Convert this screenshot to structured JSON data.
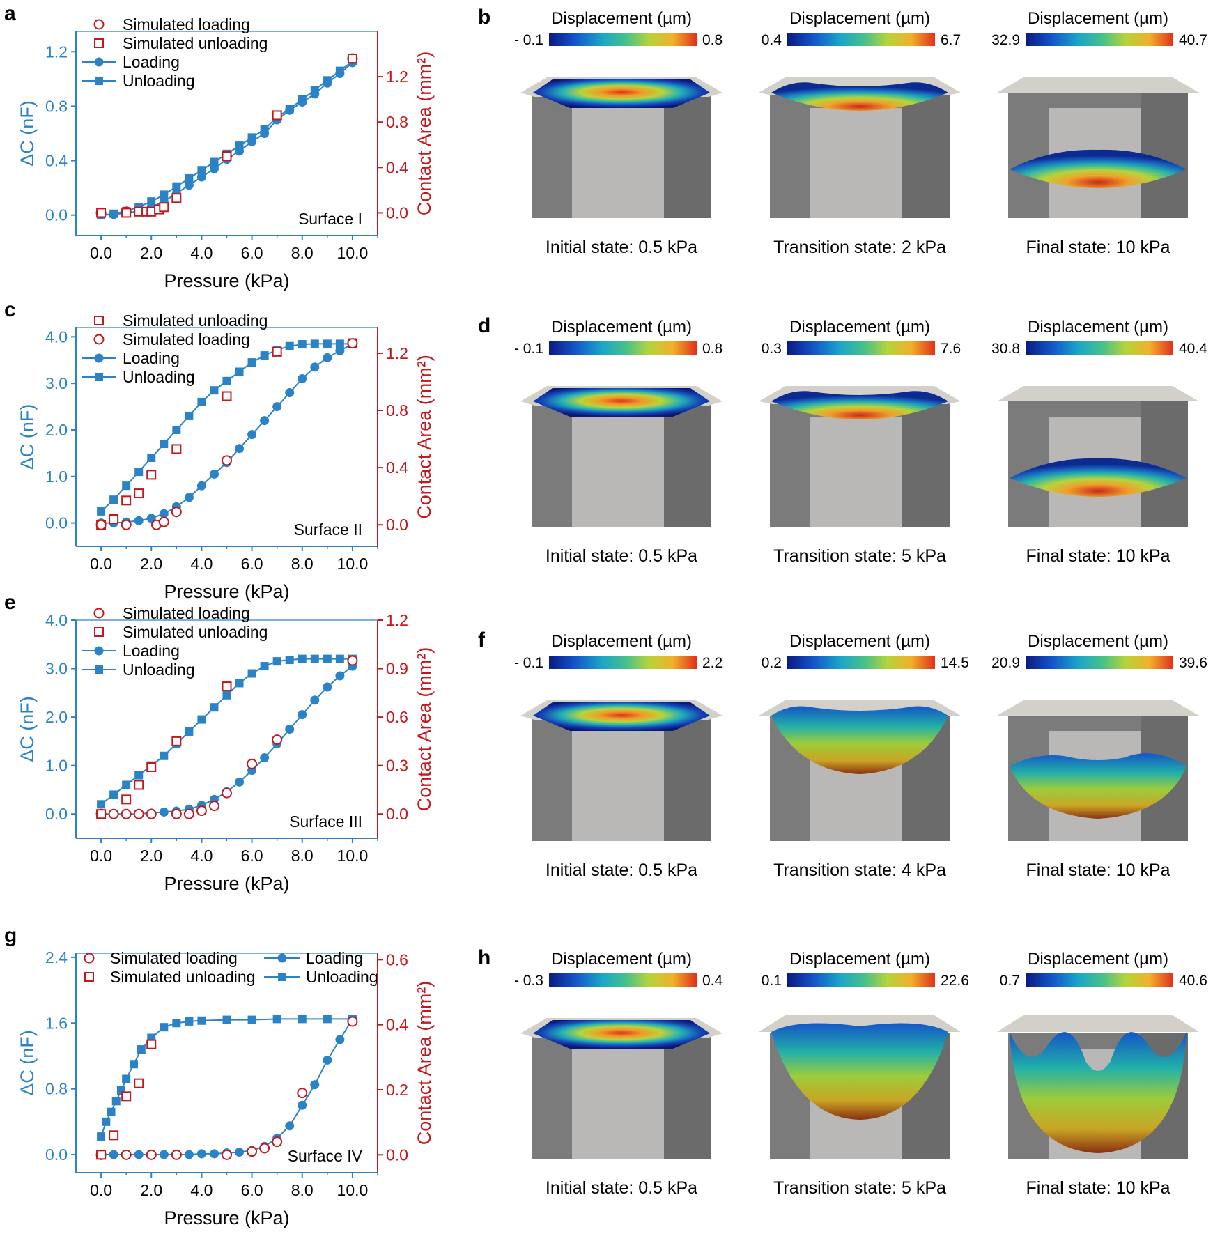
{
  "colors": {
    "blue": "#2b83c6",
    "red": "#c4181c",
    "black": "#000000",
    "side": "#7b7b7b",
    "inner": "#b9b8b6",
    "roof": "#d3d0c9"
  },
  "panels": [
    {
      "letter": "a",
      "surface": "Surface I",
      "xlabel": "Pressure (kPa)",
      "ylabel_left": "ΔC (nF)",
      "ylabel_right": "Contact Area (mm²)",
      "xticks": [
        "0.0",
        "2.0",
        "4.0",
        "6.0",
        "8.0",
        "10.0"
      ],
      "yticks_left": [
        "0.0",
        "0.4",
        "0.8",
        "1.2"
      ],
      "yticks_right": [
        "0.0",
        "0.4",
        "0.8",
        "1.2"
      ],
      "legend": [
        "Simulated loading",
        "Simulated unloading",
        "Loading",
        "Unloading"
      ]
    },
    {
      "letter": "c",
      "surface": "Surface II",
      "xlabel": "Pressure (kPa)",
      "ylabel_left": "ΔC (nF)",
      "ylabel_right": "Contact Area (mm²)",
      "xticks": [
        "0.0",
        "2.0",
        "4.0",
        "6.0",
        "8.0",
        "10.0"
      ],
      "yticks_left": [
        "0.0",
        "1.0",
        "2.0",
        "3.0",
        "4.0"
      ],
      "yticks_right": [
        "0.0",
        "0.4",
        "0.8",
        "1.2"
      ],
      "legend": [
        "Simulated unloading",
        "Simulated loading",
        "Loading",
        "Unloading"
      ]
    },
    {
      "letter": "e",
      "surface": "Surface III",
      "xlabel": "Pressure (kPa)",
      "ylabel_left": "ΔC (nF)",
      "ylabel_right": "Contact Area (mm²)",
      "xticks": [
        "0.0",
        "2.0",
        "4.0",
        "6.0",
        "8.0",
        "10.0"
      ],
      "yticks_left": [
        "0.0",
        "1.0",
        "2.0",
        "3.0",
        "4.0"
      ],
      "yticks_right": [
        "0.0",
        "0.3",
        "0.6",
        "0.9",
        "1.2"
      ],
      "legend": [
        "Simulated loading",
        "Simulated unloading",
        "Loading",
        "Unloading"
      ]
    },
    {
      "letter": "g",
      "surface": "Surface IV",
      "xlabel": "Pressure (kPa)",
      "ylabel_left": "ΔC (nF)",
      "ylabel_right": "Contact Area (mm²)",
      "xticks": [
        "0.0",
        "2.0",
        "4.0",
        "6.0",
        "8.0",
        "10.0"
      ],
      "yticks_left": [
        "0.0",
        "0.8",
        "1.6",
        "2.4"
      ],
      "yticks_right": [
        "0.0",
        "0.2",
        "0.4",
        "0.6"
      ],
      "legend": [
        "Simulated loading",
        "Simulated unloading",
        "Loading",
        "Unloading"
      ]
    }
  ],
  "chart_data": [
    {
      "type": "line",
      "title": "a — Surface I",
      "xlabel": "Pressure (kPa)",
      "ylabel": "ΔC (nF)",
      "y2label": "Contact Area (mm²)",
      "xlim": [
        -1.0,
        11.0
      ],
      "ylim": [
        -0.15,
        1.35
      ],
      "y2lim": [
        -0.2,
        1.6
      ],
      "series": [
        {
          "name": "Loading",
          "axis": "left",
          "marker": "circle-filled",
          "x": [
            0,
            0.5,
            1.0,
            1.5,
            2.0,
            2.5,
            3.0,
            3.5,
            4.0,
            4.5,
            5.0,
            5.5,
            6.0,
            6.5,
            7.0,
            7.5,
            8.0,
            8.5,
            9.0,
            9.5,
            10.0
          ],
          "y": [
            0.0,
            0.005,
            0.015,
            0.03,
            0.06,
            0.1,
            0.16,
            0.22,
            0.28,
            0.34,
            0.41,
            0.47,
            0.54,
            0.6,
            0.7,
            0.77,
            0.83,
            0.89,
            0.97,
            1.04,
            1.12
          ]
        },
        {
          "name": "Unloading",
          "axis": "left",
          "marker": "square-filled",
          "x": [
            0,
            0.5,
            1.0,
            1.5,
            2.0,
            2.5,
            3.0,
            3.5,
            4.0,
            4.5,
            5.0,
            5.5,
            6.0,
            6.5,
            7.0,
            7.5,
            8.0,
            8.5,
            9.0,
            9.5,
            10.0
          ],
          "y": [
            0.0,
            0.01,
            0.03,
            0.06,
            0.1,
            0.15,
            0.21,
            0.27,
            0.33,
            0.39,
            0.45,
            0.51,
            0.57,
            0.63,
            0.72,
            0.78,
            0.85,
            0.92,
            0.99,
            1.06,
            1.13
          ]
        },
        {
          "name": "Simulated loading",
          "axis": "right",
          "marker": "circle-open",
          "x": [
            0,
            1.0,
            5.0,
            10.0
          ],
          "y": [
            0.0,
            0.01,
            0.5,
            1.36
          ]
        },
        {
          "name": "Simulated unloading",
          "axis": "right",
          "marker": "square-open",
          "x": [
            0,
            1.0,
            1.5,
            1.8,
            2.0,
            2.3,
            2.5,
            3.0,
            5.0,
            7.0,
            10.0
          ],
          "y": [
            0.0,
            0.0,
            0.01,
            0.01,
            0.01,
            0.03,
            0.05,
            0.13,
            0.5,
            0.86,
            1.36
          ]
        }
      ]
    },
    {
      "type": "line",
      "title": "c — Surface II",
      "xlabel": "Pressure (kPa)",
      "ylabel": "ΔC (nF)",
      "y2label": "Contact Area (mm²)",
      "xlim": [
        -1.0,
        11.0
      ],
      "ylim": [
        -0.5,
        4.2
      ],
      "y2lim": [
        -0.15,
        1.38
      ],
      "series": [
        {
          "name": "Loading",
          "axis": "left",
          "marker": "circle-filled",
          "x": [
            0,
            0.5,
            1.0,
            1.5,
            2.0,
            2.5,
            3.0,
            3.5,
            4.0,
            4.5,
            5.0,
            5.5,
            6.0,
            6.5,
            7.0,
            7.5,
            8.0,
            8.5,
            9.0,
            9.5,
            10.0
          ],
          "y": [
            0.0,
            0.0,
            0.02,
            0.05,
            0.1,
            0.2,
            0.35,
            0.55,
            0.8,
            1.05,
            1.3,
            1.6,
            1.9,
            2.2,
            2.5,
            2.8,
            3.1,
            3.35,
            3.55,
            3.7,
            3.85
          ]
        },
        {
          "name": "Unloading",
          "axis": "left",
          "marker": "square-filled",
          "x": [
            0,
            0.5,
            1.0,
            1.5,
            2.0,
            2.5,
            3.0,
            3.5,
            4.0,
            4.5,
            5.0,
            5.5,
            6.0,
            6.5,
            7.0,
            7.5,
            8.0,
            8.5,
            9.0,
            9.5,
            10.0
          ],
          "y": [
            0.25,
            0.5,
            0.8,
            1.1,
            1.4,
            1.7,
            2.0,
            2.3,
            2.6,
            2.85,
            3.05,
            3.25,
            3.45,
            3.6,
            3.72,
            3.8,
            3.84,
            3.85,
            3.85,
            3.85,
            3.85
          ]
        },
        {
          "name": "Simulated unloading",
          "axis": "right",
          "marker": "square-open",
          "x": [
            0,
            0.5,
            1.0,
            1.5,
            2.0,
            3.0,
            5.0,
            7.0,
            10.0
          ],
          "y": [
            0.0,
            0.04,
            0.17,
            0.22,
            0.35,
            0.53,
            0.9,
            1.21,
            1.27
          ]
        },
        {
          "name": "Simulated loading",
          "axis": "right",
          "marker": "circle-open",
          "x": [
            0,
            1.0,
            2.2,
            2.5,
            3.0,
            5.0,
            10.0
          ],
          "y": [
            0.0,
            0.0,
            0.0,
            0.02,
            0.09,
            0.45,
            1.27
          ]
        }
      ]
    },
    {
      "type": "line",
      "title": "e — Surface III",
      "xlabel": "Pressure (kPa)",
      "ylabel": "ΔC (nF)",
      "y2label": "Contact Area (mm²)",
      "xlim": [
        -1.0,
        11.0
      ],
      "ylim": [
        -0.5,
        4.0
      ],
      "y2lim": [
        -0.15,
        1.2
      ],
      "series": [
        {
          "name": "Loading",
          "axis": "left",
          "marker": "circle-filled",
          "x": [
            0,
            0.5,
            1.0,
            1.5,
            2.0,
            2.5,
            3.0,
            3.5,
            4.0,
            4.5,
            5.0,
            5.5,
            6.0,
            6.5,
            7.0,
            7.5,
            8.0,
            8.5,
            9.0,
            9.5,
            10.0
          ],
          "y": [
            0.0,
            0.0,
            0.0,
            0.0,
            0.02,
            0.04,
            0.06,
            0.1,
            0.18,
            0.3,
            0.46,
            0.66,
            0.9,
            1.16,
            1.45,
            1.75,
            2.05,
            2.35,
            2.62,
            2.85,
            3.05
          ]
        },
        {
          "name": "Unloading",
          "axis": "left",
          "marker": "square-filled",
          "x": [
            0,
            0.5,
            1.0,
            1.5,
            2.0,
            2.5,
            3.0,
            3.5,
            4.0,
            4.5,
            5.0,
            5.5,
            6.0,
            6.5,
            7.0,
            7.5,
            8.0,
            8.5,
            9.0,
            9.5,
            10.0
          ],
          "y": [
            0.2,
            0.4,
            0.6,
            0.8,
            1.0,
            1.2,
            1.45,
            1.7,
            1.95,
            2.2,
            2.45,
            2.7,
            2.9,
            3.05,
            3.15,
            3.18,
            3.2,
            3.2,
            3.2,
            3.2,
            3.2
          ]
        },
        {
          "name": "Simulated loading",
          "axis": "right",
          "marker": "circle-open",
          "x": [
            0,
            0.5,
            1.0,
            1.5,
            2.0,
            3.0,
            3.5,
            4.0,
            4.5,
            5.0,
            6.0,
            7.0,
            10.0
          ],
          "y": [
            0.0,
            0.0,
            0.0,
            0.0,
            0.0,
            0.0,
            0.0,
            0.02,
            0.05,
            0.13,
            0.31,
            0.46,
            0.95
          ]
        },
        {
          "name": "Simulated unloading",
          "axis": "right",
          "marker": "square-open",
          "x": [
            0,
            1.0,
            1.5,
            2.0,
            3.0,
            5.0
          ],
          "y": [
            0.0,
            0.09,
            0.18,
            0.29,
            0.45,
            0.79
          ]
        }
      ]
    },
    {
      "type": "line",
      "title": "g — Surface IV",
      "xlabel": "Pressure (kPa)",
      "ylabel": "ΔC (nF)",
      "y2label": "Contact Area (mm²)",
      "xlim": [
        -1.0,
        11.0
      ],
      "ylim": [
        -0.22,
        2.45
      ],
      "y2lim": [
        -0.055,
        0.62
      ],
      "series": [
        {
          "name": "Loading",
          "axis": "left",
          "marker": "circle-filled",
          "x": [
            0,
            0.5,
            1.0,
            1.5,
            2.0,
            2.5,
            3.0,
            3.5,
            4.0,
            4.5,
            5.0,
            5.5,
            6.0,
            6.5,
            7.0,
            7.5,
            8.0,
            8.5,
            9.0,
            9.5,
            10.0
          ],
          "y": [
            0.0,
            0.0,
            0.0,
            0.0,
            0.0,
            0.0,
            0.0,
            0.0,
            0.01,
            0.01,
            0.02,
            0.03,
            0.05,
            0.1,
            0.2,
            0.35,
            0.6,
            0.85,
            1.15,
            1.4,
            1.65
          ]
        },
        {
          "name": "Unloading",
          "axis": "left",
          "marker": "square-filled",
          "x": [
            0,
            0.2,
            0.4,
            0.6,
            0.8,
            1.0,
            1.3,
            1.6,
            2.0,
            2.5,
            3.0,
            3.5,
            4.0,
            5.0,
            6.0,
            7.0,
            8.0,
            9.0,
            10.0
          ],
          "y": [
            0.22,
            0.4,
            0.52,
            0.65,
            0.78,
            0.92,
            1.1,
            1.28,
            1.42,
            1.55,
            1.6,
            1.62,
            1.63,
            1.64,
            1.64,
            1.65,
            1.65,
            1.65,
            1.65
          ]
        },
        {
          "name": "Simulated loading",
          "axis": "right",
          "marker": "circle-open",
          "x": [
            0,
            1.0,
            2.0,
            3.0,
            5.0,
            6.0,
            6.5,
            7.0,
            8.0,
            10.0
          ],
          "y": [
            0.0,
            0.0,
            0.0,
            0.0,
            0.0,
            0.01,
            0.02,
            0.04,
            0.19,
            0.41
          ]
        },
        {
          "name": "Simulated unloading",
          "axis": "right",
          "marker": "square-open",
          "x": [
            0,
            0.5,
            1.0,
            1.5,
            2.0
          ],
          "y": [
            0.0,
            0.06,
            0.18,
            0.22,
            0.34
          ]
        }
      ]
    }
  ],
  "simulations": [
    {
      "letter": "b",
      "cells": [
        {
          "title": "Displacement (µm)",
          "min": "- 0.1",
          "max": "0.8",
          "caption": "Initial state: 0.5 kPa",
          "shape": "flat"
        },
        {
          "title": "Displacement (µm)",
          "min": "0.4",
          "max": "6.7",
          "caption": "Transition state: 2 kPa",
          "shape": "slight"
        },
        {
          "title": "Displacement (µm)",
          "min": "32.9",
          "max": "40.7",
          "caption": "Final state: 10 kPa",
          "shape": "deep"
        }
      ]
    },
    {
      "letter": "d",
      "cells": [
        {
          "title": "Displacement (µm)",
          "min": "- 0.1",
          "max": "0.8",
          "caption": "Initial state: 0.5 kPa",
          "shape": "flat"
        },
        {
          "title": "Displacement (µm)",
          "min": "0.3",
          "max": "7.6",
          "caption": "Transition state: 5 kPa",
          "shape": "slight"
        },
        {
          "title": "Displacement (µm)",
          "min": "30.8",
          "max": "40.4",
          "caption": "Final state: 10 kPa",
          "shape": "deep"
        }
      ]
    },
    {
      "letter": "f",
      "cells": [
        {
          "title": "Displacement (µm)",
          "min": "- 0.1",
          "max": "2.2",
          "caption": "Initial state: 0.5 kPa",
          "shape": "flat"
        },
        {
          "title": "Displacement (µm)",
          "min": "0.2",
          "max": "14.5",
          "caption": "Transition state: 4 kPa",
          "shape": "bowl"
        },
        {
          "title": "Displacement (µm)",
          "min": "20.9",
          "max": "39.6",
          "caption": "Final state: 10 kPa",
          "shape": "deepbowl"
        }
      ]
    },
    {
      "letter": "h",
      "cells": [
        {
          "title": "Displacement (µm)",
          "min": "- 0.3",
          "max": "0.4",
          "caption": "Initial state: 0.5 kPa",
          "shape": "flat"
        },
        {
          "title": "Displacement (µm)",
          "min": "0.1",
          "max": "22.6",
          "caption": "Transition state: 5 kPa",
          "shape": "hemi"
        },
        {
          "title": "Displacement (µm)",
          "min": "0.7",
          "max": "40.6",
          "caption": "Final state: 10 kPa",
          "shape": "horns"
        }
      ]
    }
  ]
}
